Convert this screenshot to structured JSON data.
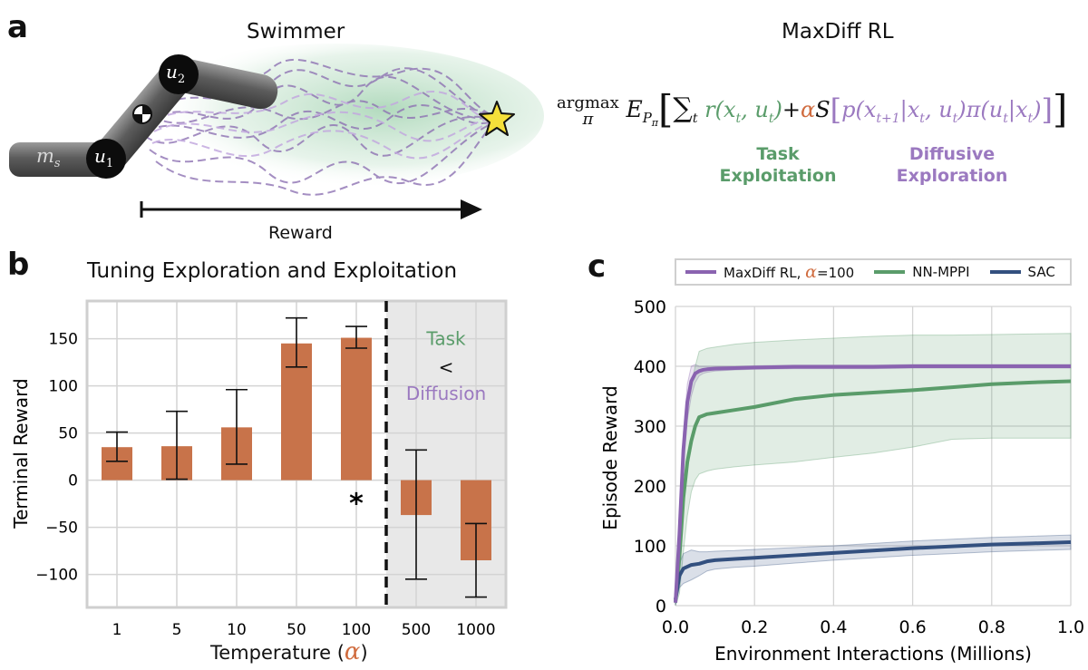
{
  "panel_a": {
    "label": "a",
    "swimmer_title": "Swimmer",
    "maxdiff_title": "MaxDiff RL",
    "joint_u1": "u",
    "joint_u1_sub": "1",
    "joint_u2": "u",
    "joint_u2_sub": "2",
    "mass_label": "m",
    "mass_sub": "s",
    "reward_arrow_label": "Reward",
    "equation": {
      "argmax": "argmax",
      "argmax_sub": "π",
      "expect": "E",
      "expect_sub": "P",
      "expect_subsub": "π",
      "sum": "∑",
      "sum_sub": "t",
      "reward_term": "r(x",
      "reward_term_sub": "t",
      "reward_term_mid": ", u",
      "reward_term_sub2": "t",
      "reward_term_end": ")",
      "plus": "+",
      "alpha": "α",
      "entropy": "S",
      "density": "p(x",
      "density_sub": "t+1",
      "density_mid": "|x",
      "density_sub2": "t",
      "density_mid2": ", u",
      "density_sub3": "t",
      "density_end": ")π(u",
      "density_sub4": "t",
      "density_mid3": "|x",
      "density_sub5": "t",
      "density_close": ")"
    },
    "task_label": [
      "Task",
      "Exploitation"
    ],
    "diffusive_label": [
      "Diffusive",
      "Exploration"
    ]
  },
  "colors": {
    "bar": "#c8734a",
    "maxdiff": "#8a63b0",
    "nnmppi": "#5a9c6a",
    "sac": "#33507f",
    "shade": "#e8e8e8",
    "grid": "#d4d4d4",
    "swimmer_glow": "#bfe0c8"
  },
  "chart_data": [
    {
      "id": "b",
      "label": "b",
      "type": "bar",
      "title": "Tuning Exploration and Exploitation",
      "xlabel": "Temperature (",
      "xlabel_symbol": "α",
      "xlabel_end": ")",
      "ylabel": "Terminal Reward",
      "categories": [
        "1",
        "5",
        "10",
        "50",
        "100",
        "500",
        "1000"
      ],
      "values": [
        35,
        36,
        56,
        145,
        151,
        -37,
        -85
      ],
      "error_low": [
        20,
        1,
        17,
        120,
        140,
        -105,
        -124
      ],
      "error_high": [
        51,
        73,
        96,
        172,
        163,
        32,
        -46
      ],
      "ylim": [
        -135,
        190
      ],
      "yticks": [
        -100,
        -50,
        0,
        50,
        100,
        150
      ],
      "ytick_labels": [
        "−100",
        "−50",
        "0",
        "50",
        "100",
        "150"
      ],
      "shaded_from_category": "500",
      "best_marker": "*",
      "best_category": "100",
      "annotation": [
        "Task",
        "<",
        "Diffusion"
      ]
    },
    {
      "id": "c",
      "label": "c",
      "type": "line",
      "xlabel": "Environment Interactions (Millions)",
      "ylabel": "Episode Reward",
      "xlim": [
        0,
        1
      ],
      "ylim": [
        0,
        500
      ],
      "xticks": [
        0,
        0.2,
        0.4,
        0.6,
        0.8,
        1.0
      ],
      "xtick_labels": [
        "0.0",
        "0.2",
        "0.4",
        "0.6",
        "0.8",
        "1.0"
      ],
      "yticks": [
        0,
        100,
        200,
        300,
        400,
        500
      ],
      "ytick_labels": [
        "0",
        "100",
        "200",
        "300",
        "400",
        "500"
      ],
      "legend_position": "top",
      "series": [
        {
          "name": "MaxDiff RL,",
          "name_suffix": "=100",
          "x": [
            0,
            0.01,
            0.02,
            0.03,
            0.04,
            0.05,
            0.06,
            0.07,
            0.08,
            0.1,
            0.15,
            0.2,
            0.3,
            0.4,
            0.5,
            0.6,
            0.7,
            0.8,
            0.9,
            1.0
          ],
          "y": [
            5,
            120,
            260,
            340,
            375,
            388,
            392,
            394,
            395,
            396,
            397,
            398,
            399,
            399,
            399,
            400,
            400,
            400,
            400,
            400
          ],
          "band": [
            10,
            20,
            30,
            30,
            25,
            15,
            8,
            6,
            5,
            4,
            3,
            3,
            3,
            3,
            3,
            3,
            3,
            3,
            3,
            3
          ]
        },
        {
          "name": "NN-MPPI",
          "x": [
            0,
            0.01,
            0.02,
            0.03,
            0.04,
            0.05,
            0.06,
            0.08,
            0.1,
            0.15,
            0.2,
            0.3,
            0.4,
            0.5,
            0.6,
            0.7,
            0.8,
            0.9,
            1.0
          ],
          "y": [
            5,
            80,
            180,
            240,
            275,
            300,
            315,
            320,
            322,
            327,
            332,
            345,
            352,
            356,
            360,
            365,
            370,
            373,
            375
          ],
          "band_low": [
            0,
            20,
            90,
            150,
            190,
            210,
            220,
            225,
            228,
            232,
            235,
            240,
            248,
            255,
            265,
            278,
            280,
            280,
            280
          ],
          "band_high": [
            15,
            150,
            270,
            330,
            370,
            400,
            425,
            430,
            432,
            437,
            440,
            444,
            447,
            450,
            452,
            452,
            453,
            454,
            455
          ]
        },
        {
          "name": "SAC",
          "x": [
            0,
            0.01,
            0.02,
            0.04,
            0.06,
            0.08,
            0.1,
            0.15,
            0.2,
            0.3,
            0.4,
            0.5,
            0.6,
            0.7,
            0.8,
            0.9,
            1.0
          ],
          "y": [
            10,
            50,
            62,
            68,
            70,
            74,
            76,
            78,
            80,
            84,
            88,
            92,
            96,
            99,
            102,
            104,
            106
          ],
          "band": [
            8,
            20,
            25,
            25,
            20,
            16,
            15,
            14,
            14,
            13,
            12,
            12,
            12,
            12,
            12,
            12,
            12
          ]
        }
      ]
    }
  ]
}
